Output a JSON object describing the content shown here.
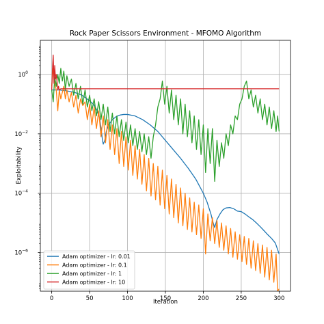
{
  "chart_data": {
    "type": "line",
    "title": "Rock Paper Scissors Environment - MFOMO Algorithm",
    "xlabel": "Iteration",
    "ylabel": "Exploitability",
    "xlim": [
      -15,
      315
    ],
    "ylim_log10": [
      -7.3,
      1.15
    ],
    "yscale": "log",
    "grid": true,
    "legend_position": "lower-left",
    "x_ticks": [
      0,
      50,
      100,
      150,
      200,
      250,
      300
    ],
    "x_tick_labels": [
      "0",
      "50",
      "100",
      "150",
      "200",
      "250",
      "300"
    ],
    "y_ticks_log10": [
      -6,
      -4,
      -2,
      0
    ],
    "y_tick_labels": [
      "10",
      "10",
      "10",
      "10"
    ],
    "y_tick_exponents": [
      "−6",
      "−4",
      "−2",
      "0"
    ],
    "series": [
      {
        "name": "Adam optimizer - lr: 0.01",
        "color": "#1f77b4",
        "x": [
          0,
          5,
          10,
          20,
          30,
          40,
          50,
          55,
          60,
          63,
          65,
          67,
          68,
          70,
          72,
          75,
          80,
          85,
          90,
          95,
          100,
          110,
          120,
          130,
          140,
          150,
          160,
          170,
          180,
          190,
          200,
          205,
          210,
          213,
          215,
          218,
          222,
          226,
          230,
          235,
          240,
          245,
          250,
          255,
          260,
          265,
          270,
          275,
          280,
          285,
          290,
          295,
          300
        ],
        "y": [
          0.3,
          0.3,
          0.3,
          0.28,
          0.25,
          0.2,
          0.13,
          0.1,
          0.06,
          0.035,
          0.016,
          0.006,
          0.0045,
          0.006,
          0.012,
          0.02,
          0.03,
          0.038,
          0.043,
          0.045,
          0.045,
          0.04,
          0.03,
          0.02,
          0.012,
          0.006,
          0.003,
          0.0015,
          0.0007,
          0.0003,
          0.0001,
          5e-05,
          2e-05,
          1e-05,
          7e-06,
          1.3e-05,
          2e-05,
          2.8e-05,
          3.2e-05,
          3.3e-05,
          3e-05,
          2.5e-05,
          2.4e-05,
          2e-05,
          1.6e-05,
          1.3e-05,
          1e-05,
          7.5e-06,
          5.5e-06,
          4e-06,
          3e-06,
          2.1e-06,
          9e-07
        ]
      },
      {
        "name": "Adam optimizer - lr: 0.1",
        "color": "#ff7f0e",
        "x": [
          0,
          2,
          4,
          6,
          8,
          10,
          12,
          14,
          16,
          18,
          20,
          23,
          26,
          29,
          32,
          35,
          38,
          41,
          44,
          47,
          50,
          53,
          56,
          59,
          62,
          65,
          68,
          71,
          74,
          77,
          80,
          83,
          86,
          89,
          92,
          95,
          98,
          101,
          104,
          107,
          110,
          113,
          116,
          119,
          122,
          125,
          128,
          131,
          134,
          137,
          140,
          143,
          146,
          149,
          152,
          155,
          158,
          161,
          164,
          167,
          170,
          173,
          176,
          179,
          182,
          185,
          188,
          191,
          194,
          197,
          200,
          203,
          206,
          209,
          212,
          215,
          218,
          221,
          224,
          227,
          230,
          233,
          236,
          239,
          242,
          245,
          248,
          251,
          254,
          257,
          260,
          263,
          266,
          269,
          272,
          275,
          278,
          281,
          284,
          287,
          290,
          293,
          296,
          298,
          300
        ],
        "y": [
          0.4,
          1.6,
          0.5,
          0.3,
          0.06,
          0.3,
          0.15,
          0.25,
          0.4,
          0.15,
          0.3,
          0.12,
          0.25,
          0.08,
          0.2,
          0.05,
          0.15,
          0.09,
          0.12,
          0.03,
          0.1,
          0.02,
          0.08,
          0.015,
          0.06,
          0.008,
          0.04,
          0.005,
          0.03,
          0.003,
          0.02,
          0.002,
          0.015,
          0.001,
          0.012,
          0.0008,
          0.008,
          0.0006,
          0.006,
          0.0004,
          0.004,
          0.0003,
          0.003,
          0.0002,
          0.002,
          0.00012,
          0.0015,
          8e-05,
          0.001,
          6e-05,
          0.0008,
          4e-05,
          0.0006,
          3e-05,
          0.0004,
          2e-05,
          0.0003,
          1.5e-05,
          0.0002,
          1e-05,
          0.00015,
          8e-06,
          0.0001,
          6e-06,
          7e-05,
          5e-06,
          5e-05,
          4e-06,
          4e-05,
          3e-06,
          3e-05,
          9e-07,
          2e-05,
          2.5e-06,
          1.5e-05,
          2e-06,
          1.2e-05,
          1.5e-06,
          1e-05,
          1.2e-06,
          8e-06,
          9e-07,
          6.5e-06,
          7e-07,
          5e-06,
          6e-07,
          4e-06,
          5e-07,
          3.5e-06,
          4e-07,
          3e-06,
          3e-07,
          2.5e-06,
          2.5e-07,
          2e-06,
          2e-07,
          1.8e-06,
          1.5e-07,
          1.5e-06,
          1.2e-07,
          1.2e-06,
          1e-07,
          9e-07,
          5e-08,
          6e-08
        ]
      },
      {
        "name": "Adam optimizer - lr: 1",
        "color": "#2ca02c",
        "x": [
          0,
          2,
          4,
          6,
          8,
          10,
          12,
          14,
          16,
          18,
          20,
          23,
          26,
          29,
          32,
          35,
          38,
          41,
          44,
          47,
          50,
          53,
          56,
          59,
          62,
          65,
          68,
          71,
          74,
          77,
          80,
          83,
          86,
          89,
          92,
          95,
          98,
          101,
          104,
          107,
          110,
          113,
          116,
          119,
          122,
          125,
          128,
          131,
          134,
          137,
          140,
          143,
          146,
          149,
          152,
          155,
          158,
          161,
          164,
          167,
          170,
          173,
          176,
          179,
          182,
          185,
          188,
          191,
          194,
          197,
          200,
          203,
          206,
          209,
          212,
          215,
          218,
          221,
          224,
          227,
          230,
          233,
          236,
          239,
          242,
          245,
          248,
          251,
          254,
          257,
          260,
          263,
          266,
          269,
          272,
          275,
          278,
          281,
          284,
          287,
          290,
          293,
          296,
          298,
          300
        ],
        "y": [
          0.3,
          0.12,
          0.8,
          0.4,
          1.0,
          0.5,
          1.6,
          0.6,
          1.3,
          0.3,
          0.9,
          0.4,
          0.7,
          0.2,
          0.5,
          0.15,
          0.4,
          0.1,
          0.3,
          0.08,
          0.2,
          0.06,
          0.15,
          0.04,
          0.12,
          0.03,
          0.1,
          0.02,
          0.08,
          0.012,
          0.05,
          0.01,
          0.04,
          0.008,
          0.03,
          0.006,
          0.025,
          0.005,
          0.02,
          0.004,
          0.015,
          0.003,
          0.012,
          0.0025,
          0.01,
          0.002,
          0.008,
          0.0015,
          0.008,
          0.02,
          0.08,
          0.15,
          0.6,
          0.1,
          0.4,
          0.05,
          0.3,
          0.03,
          0.2,
          0.02,
          0.15,
          0.01,
          0.1,
          0.008,
          0.06,
          0.005,
          0.04,
          0.003,
          0.03,
          0.002,
          0.02,
          0.0005,
          0.015,
          0.001,
          0.015,
          0.00025,
          0.006,
          0.0008,
          0.005,
          0.0015,
          0.01,
          0.004,
          0.02,
          0.01,
          0.04,
          0.03,
          0.1,
          0.15,
          0.4,
          0.6,
          0.15,
          0.3,
          0.08,
          0.2,
          0.05,
          0.15,
          0.03,
          0.1,
          0.02,
          0.08,
          0.015,
          0.06,
          0.012,
          0.04,
          0.012
        ]
      },
      {
        "name": "Adam optimizer - lr: 10",
        "color": "#d62728",
        "x": [
          0,
          1,
          2,
          3,
          4,
          5,
          6,
          7,
          8,
          9,
          10,
          12,
          15,
          300
        ],
        "y": [
          0.3,
          1.5,
          4.5,
          0.5,
          2.0,
          0.7,
          1.0,
          0.6,
          0.3,
          0.4,
          0.3,
          0.33,
          0.33,
          0.33
        ]
      }
    ]
  }
}
